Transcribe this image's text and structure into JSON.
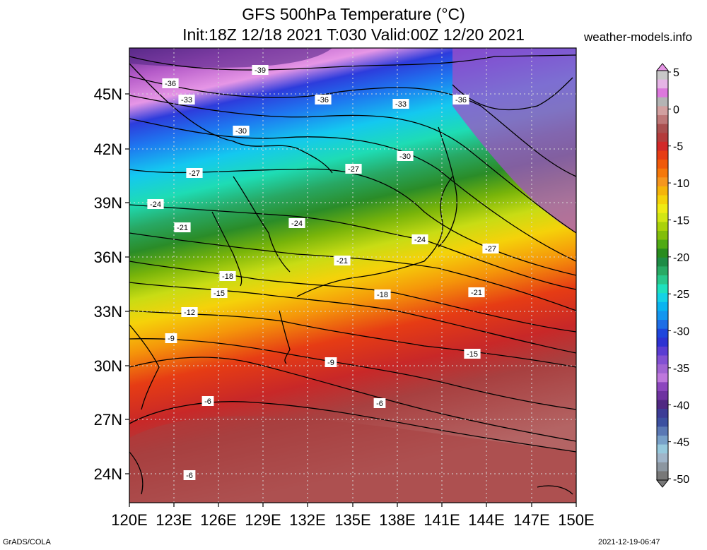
{
  "title": {
    "line1": "GFS 500hPa Temperature (°C)",
    "line2": "Init:18Z 12/18 2021 T:030 Valid:00Z 12/20 2021"
  },
  "site": "weather-models.info",
  "footer": {
    "left": "GrADS/COLA",
    "right": "2021-12-19-06:47"
  },
  "axes": {
    "lat_labels": [
      "45N",
      "42N",
      "39N",
      "36N",
      "33N",
      "30N",
      "27N",
      "24N"
    ],
    "lon_labels": [
      "120E",
      "123E",
      "126E",
      "129E",
      "132E",
      "135E",
      "138E",
      "141E",
      "144E",
      "147E",
      "150E"
    ]
  },
  "colorbar": {
    "labels": [
      "5",
      "0",
      "-5",
      "-10",
      "-15",
      "-20",
      "-25",
      "-30",
      "-35",
      "-40",
      "-45",
      "-50"
    ],
    "colors": [
      "#c8c8c8",
      "#e6b4e6",
      "#dc78dc",
      "#b4b4b4",
      "#d2a0a0",
      "#be7878",
      "#aa5050",
      "#b43c3c",
      "#d22828",
      "#e63c14",
      "#f05a0a",
      "#f5780a",
      "#f5961e",
      "#f5b40a",
      "#f5d20a",
      "#f0eb14",
      "#d2e614",
      "#aad20a",
      "#82be0a",
      "#50aa14",
      "#288c1e",
      "#1e8c46",
      "#28aa64",
      "#28c88c",
      "#1ee1be",
      "#14d2e6",
      "#0ab4f0",
      "#1496f0",
      "#1e6ee6",
      "#1e46dc",
      "#2d32d2",
      "#5a3cd2",
      "#8250d2",
      "#a064d2",
      "#be78dc",
      "#8c46be",
      "#6e32a0",
      "#502882",
      "#3c3c96",
      "#3c50a0",
      "#5a78b4",
      "#78a0c8",
      "#96c8dc",
      "#a0b4c8",
      "#8c96a0",
      "#787878"
    ]
  },
  "contour_labels": [
    {
      "text": "-39"
    },
    {
      "text": "-36"
    },
    {
      "text": "-36"
    },
    {
      "text": "-36"
    },
    {
      "text": "-33"
    },
    {
      "text": "-33"
    },
    {
      "text": "-30"
    },
    {
      "text": "-30"
    },
    {
      "text": "-27"
    },
    {
      "text": "-27"
    },
    {
      "text": "-27"
    },
    {
      "text": "-24"
    },
    {
      "text": "-24"
    },
    {
      "text": "-24"
    },
    {
      "text": "-21"
    },
    {
      "text": "-21"
    },
    {
      "text": "-21"
    },
    {
      "text": "-18"
    },
    {
      "text": "-18"
    },
    {
      "text": "-15"
    },
    {
      "text": "-15"
    },
    {
      "text": "-12"
    },
    {
      "text": "-9"
    },
    {
      "text": "-9"
    },
    {
      "text": "-6"
    },
    {
      "text": "-6"
    },
    {
      "text": "-6"
    }
  ]
}
